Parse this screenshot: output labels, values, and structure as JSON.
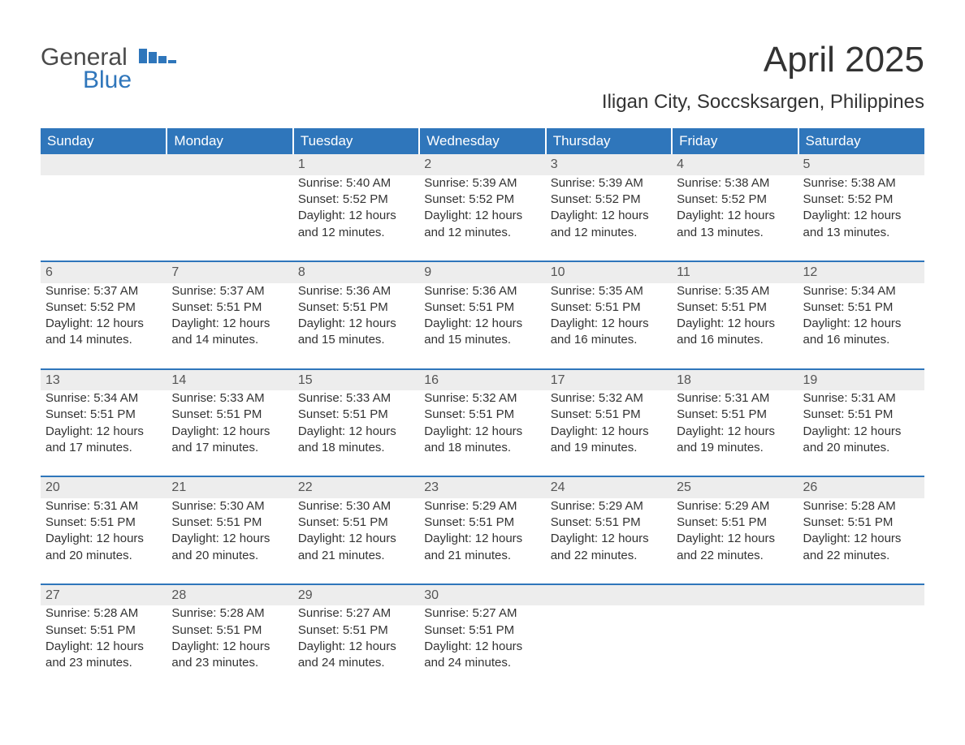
{
  "brand": {
    "general": "General",
    "blue": "Blue"
  },
  "title": "April 2025",
  "subtitle": "Iligan City, Soccsksargen, Philippines",
  "columns": [
    "Sunday",
    "Monday",
    "Tuesday",
    "Wednesday",
    "Thursday",
    "Friday",
    "Saturday"
  ],
  "colors": {
    "header_bg": "#2f76bb",
    "header_text": "#ffffff",
    "daynum_bg": "#ededed",
    "daynum_border": "#2f76bb",
    "body_bg": "#ffffff",
    "text": "#333333"
  },
  "weeks": [
    [
      null,
      null,
      {
        "n": "1",
        "sunrise": "Sunrise: 5:40 AM",
        "sunset": "Sunset: 5:52 PM",
        "daylight": "Daylight: 12 hours and 12 minutes."
      },
      {
        "n": "2",
        "sunrise": "Sunrise: 5:39 AM",
        "sunset": "Sunset: 5:52 PM",
        "daylight": "Daylight: 12 hours and 12 minutes."
      },
      {
        "n": "3",
        "sunrise": "Sunrise: 5:39 AM",
        "sunset": "Sunset: 5:52 PM",
        "daylight": "Daylight: 12 hours and 12 minutes."
      },
      {
        "n": "4",
        "sunrise": "Sunrise: 5:38 AM",
        "sunset": "Sunset: 5:52 PM",
        "daylight": "Daylight: 12 hours and 13 minutes."
      },
      {
        "n": "5",
        "sunrise": "Sunrise: 5:38 AM",
        "sunset": "Sunset: 5:52 PM",
        "daylight": "Daylight: 12 hours and 13 minutes."
      }
    ],
    [
      {
        "n": "6",
        "sunrise": "Sunrise: 5:37 AM",
        "sunset": "Sunset: 5:52 PM",
        "daylight": "Daylight: 12 hours and 14 minutes."
      },
      {
        "n": "7",
        "sunrise": "Sunrise: 5:37 AM",
        "sunset": "Sunset: 5:51 PM",
        "daylight": "Daylight: 12 hours and 14 minutes."
      },
      {
        "n": "8",
        "sunrise": "Sunrise: 5:36 AM",
        "sunset": "Sunset: 5:51 PM",
        "daylight": "Daylight: 12 hours and 15 minutes."
      },
      {
        "n": "9",
        "sunrise": "Sunrise: 5:36 AM",
        "sunset": "Sunset: 5:51 PM",
        "daylight": "Daylight: 12 hours and 15 minutes."
      },
      {
        "n": "10",
        "sunrise": "Sunrise: 5:35 AM",
        "sunset": "Sunset: 5:51 PM",
        "daylight": "Daylight: 12 hours and 16 minutes."
      },
      {
        "n": "11",
        "sunrise": "Sunrise: 5:35 AM",
        "sunset": "Sunset: 5:51 PM",
        "daylight": "Daylight: 12 hours and 16 minutes."
      },
      {
        "n": "12",
        "sunrise": "Sunrise: 5:34 AM",
        "sunset": "Sunset: 5:51 PM",
        "daylight": "Daylight: 12 hours and 16 minutes."
      }
    ],
    [
      {
        "n": "13",
        "sunrise": "Sunrise: 5:34 AM",
        "sunset": "Sunset: 5:51 PM",
        "daylight": "Daylight: 12 hours and 17 minutes."
      },
      {
        "n": "14",
        "sunrise": "Sunrise: 5:33 AM",
        "sunset": "Sunset: 5:51 PM",
        "daylight": "Daylight: 12 hours and 17 minutes."
      },
      {
        "n": "15",
        "sunrise": "Sunrise: 5:33 AM",
        "sunset": "Sunset: 5:51 PM",
        "daylight": "Daylight: 12 hours and 18 minutes."
      },
      {
        "n": "16",
        "sunrise": "Sunrise: 5:32 AM",
        "sunset": "Sunset: 5:51 PM",
        "daylight": "Daylight: 12 hours and 18 minutes."
      },
      {
        "n": "17",
        "sunrise": "Sunrise: 5:32 AM",
        "sunset": "Sunset: 5:51 PM",
        "daylight": "Daylight: 12 hours and 19 minutes."
      },
      {
        "n": "18",
        "sunrise": "Sunrise: 5:31 AM",
        "sunset": "Sunset: 5:51 PM",
        "daylight": "Daylight: 12 hours and 19 minutes."
      },
      {
        "n": "19",
        "sunrise": "Sunrise: 5:31 AM",
        "sunset": "Sunset: 5:51 PM",
        "daylight": "Daylight: 12 hours and 20 minutes."
      }
    ],
    [
      {
        "n": "20",
        "sunrise": "Sunrise: 5:31 AM",
        "sunset": "Sunset: 5:51 PM",
        "daylight": "Daylight: 12 hours and 20 minutes."
      },
      {
        "n": "21",
        "sunrise": "Sunrise: 5:30 AM",
        "sunset": "Sunset: 5:51 PM",
        "daylight": "Daylight: 12 hours and 20 minutes."
      },
      {
        "n": "22",
        "sunrise": "Sunrise: 5:30 AM",
        "sunset": "Sunset: 5:51 PM",
        "daylight": "Daylight: 12 hours and 21 minutes."
      },
      {
        "n": "23",
        "sunrise": "Sunrise: 5:29 AM",
        "sunset": "Sunset: 5:51 PM",
        "daylight": "Daylight: 12 hours and 21 minutes."
      },
      {
        "n": "24",
        "sunrise": "Sunrise: 5:29 AM",
        "sunset": "Sunset: 5:51 PM",
        "daylight": "Daylight: 12 hours and 22 minutes."
      },
      {
        "n": "25",
        "sunrise": "Sunrise: 5:29 AM",
        "sunset": "Sunset: 5:51 PM",
        "daylight": "Daylight: 12 hours and 22 minutes."
      },
      {
        "n": "26",
        "sunrise": "Sunrise: 5:28 AM",
        "sunset": "Sunset: 5:51 PM",
        "daylight": "Daylight: 12 hours and 22 minutes."
      }
    ],
    [
      {
        "n": "27",
        "sunrise": "Sunrise: 5:28 AM",
        "sunset": "Sunset: 5:51 PM",
        "daylight": "Daylight: 12 hours and 23 minutes."
      },
      {
        "n": "28",
        "sunrise": "Sunrise: 5:28 AM",
        "sunset": "Sunset: 5:51 PM",
        "daylight": "Daylight: 12 hours and 23 minutes."
      },
      {
        "n": "29",
        "sunrise": "Sunrise: 5:27 AM",
        "sunset": "Sunset: 5:51 PM",
        "daylight": "Daylight: 12 hours and 24 minutes."
      },
      {
        "n": "30",
        "sunrise": "Sunrise: 5:27 AM",
        "sunset": "Sunset: 5:51 PM",
        "daylight": "Daylight: 12 hours and 24 minutes."
      },
      null,
      null,
      null
    ]
  ]
}
